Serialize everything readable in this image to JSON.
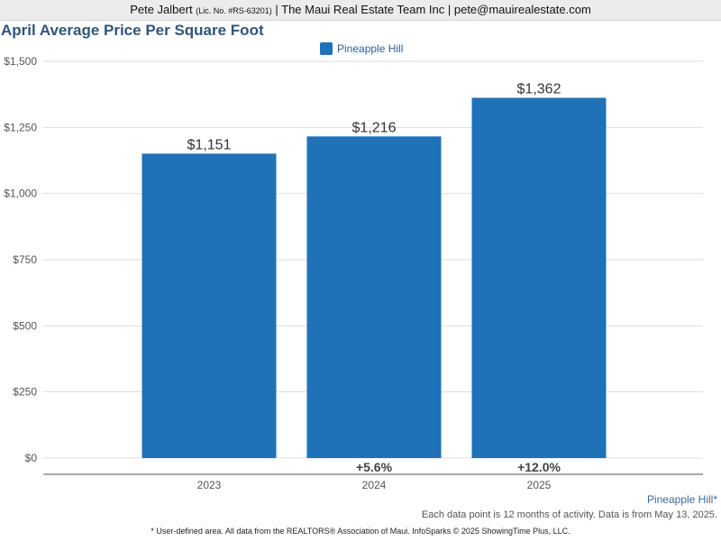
{
  "header": {
    "agent_name": "Pete Jalbert",
    "license": "(Lic. No. #RS-63201)",
    "company_and_email": "| The Maui Real Estate Team Inc | pete@mauirealestate.com"
  },
  "chart_data": {
    "type": "bar",
    "title": "April Average Price Per Square Foot",
    "categories": [
      "2023",
      "2024",
      "2025"
    ],
    "series": [
      {
        "name": "Pineapple Hill",
        "color": "#1f72b8",
        "values": [
          1151,
          1216,
          1362
        ]
      }
    ],
    "value_labels": [
      "$1,151",
      "$1,216",
      "$1,362"
    ],
    "change_labels": [
      "",
      "+5.6%",
      "+12.0%"
    ],
    "y_ticks": [
      0,
      250,
      500,
      750,
      1000,
      1250,
      1500
    ],
    "y_tick_labels": [
      "$0",
      "$250",
      "$500",
      "$750",
      "$1,000",
      "$1,250",
      "$1,500"
    ],
    "ylim": [
      0,
      1500
    ],
    "grid": true,
    "legend_position": "top-center"
  },
  "area_label": "Pineapple Hill*",
  "note": "Each data point is 12 months of activity. Data is from May 13, 2025.",
  "footer": "* User-defined area. All data from the REALTORS® Association of Maui. InfoSparks © 2025 ShowingTime Plus, LLC."
}
